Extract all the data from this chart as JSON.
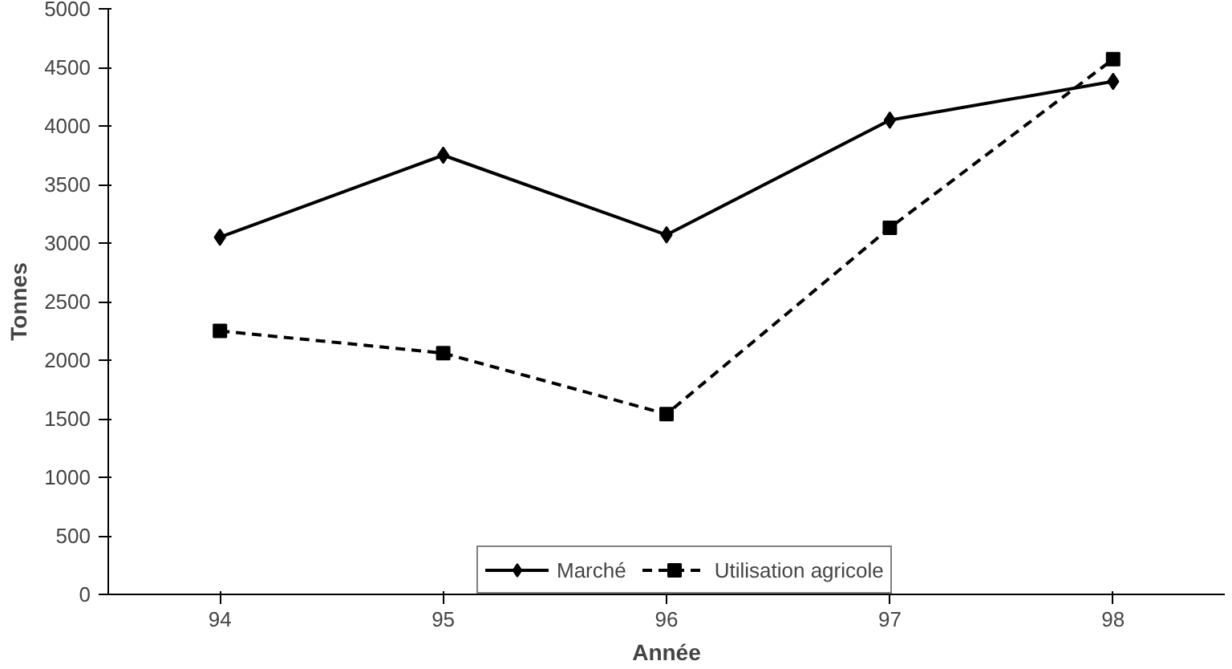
{
  "chart_data": {
    "type": "line",
    "xlabel": "Année",
    "ylabel": "Tonnes",
    "categories": [
      "94",
      "95",
      "96",
      "97",
      "98"
    ],
    "ylim": [
      0,
      5000
    ],
    "yticks": [
      0,
      500,
      1000,
      1500,
      2000,
      2500,
      3000,
      3500,
      4000,
      4500,
      5000
    ],
    "grid": false,
    "legend": "bottom",
    "series": [
      {
        "name": "Marché",
        "color": "#000000",
        "marker": "diamond",
        "line_style": "solid",
        "values": [
          3050,
          3750,
          3070,
          4050,
          4380
        ]
      },
      {
        "name": "Utilisation agricole",
        "color": "#000000",
        "marker": "square",
        "line_style": "dashed",
        "values": [
          2250,
          2060,
          1540,
          3130,
          4570
        ]
      }
    ]
  }
}
